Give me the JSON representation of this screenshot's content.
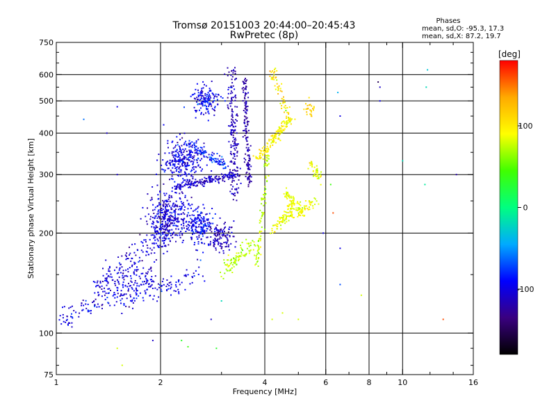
{
  "chart_data": {
    "type": "scatter",
    "title": "Tromsø 20151003 20:44:00–20:45:43",
    "subtitle": "RwPretec (8p)",
    "xlabel": "Frequency [MHz]",
    "ylabel": "Stationary phase Virtual Height [km]",
    "x_scale": "log",
    "y_scale": "log",
    "xlim": [
      1,
      16
    ],
    "ylim": [
      75,
      750
    ],
    "x_ticks": [
      1,
      2,
      4,
      6,
      8,
      10,
      16
    ],
    "x_tick_labels": [
      "1",
      "2",
      "4",
      "6",
      "8",
      "10",
      "16"
    ],
    "y_ticks": [
      75,
      100,
      200,
      300,
      400,
      500,
      600,
      750
    ],
    "y_tick_labels": [
      "75",
      "100",
      "200",
      "300",
      "400",
      "500",
      "600",
      "750"
    ],
    "x_gridlines": [
      2,
      4,
      6,
      8,
      10
    ],
    "y_gridlines": [
      100,
      200,
      300,
      400,
      500,
      600
    ],
    "grid": true,
    "phase_stats": {
      "heading": "Phases",
      "line_o": "mean, sd,O: -95.3, 17.3",
      "line_x": "mean, sd,X:  87.2, 19.7"
    },
    "colorbar": {
      "label": "[deg]",
      "range": [
        -180,
        180
      ],
      "ticks": [
        100,
        0,
        -100
      ],
      "tick_labels": [
        "100",
        "0",
        "-100"
      ],
      "stops": [
        "#000000",
        "#3a0080",
        "#0000ff",
        "#00aaff",
        "#00ff80",
        "#40ff00",
        "#ffff00",
        "#ffaa00",
        "#ff0000"
      ]
    },
    "clusters": [
      {
        "kind": "trace",
        "from": [
          1.0,
          108
        ],
        "to": [
          1.9,
          150
        ],
        "count": 150,
        "spread": 0.04,
        "phase": -105,
        "phase_sd": 12
      },
      {
        "kind": "trace",
        "from": [
          1.3,
          135
        ],
        "to": [
          2.1,
          200
        ],
        "count": 170,
        "spread": 0.05,
        "phase": -105,
        "phase_sd": 12
      },
      {
        "kind": "trace",
        "from": [
          1.5,
          125
        ],
        "to": [
          2.6,
          150
        ],
        "count": 120,
        "spread": 0.04,
        "phase": -100,
        "phase_sd": 12
      },
      {
        "kind": "blob",
        "center": [
          2.1,
          220
        ],
        "sd": [
          0.07,
          0.09
        ],
        "count": 360,
        "phase": -105,
        "phase_sd": 13
      },
      {
        "kind": "blob",
        "center": [
          2.6,
          210
        ],
        "sd": [
          0.05,
          0.07
        ],
        "count": 190,
        "phase": -95,
        "phase_sd": 15
      },
      {
        "kind": "blob",
        "center": [
          2.3,
          330
        ],
        "sd": [
          0.06,
          0.07
        ],
        "count": 260,
        "phase": -100,
        "phase_sd": 13
      },
      {
        "kind": "trace",
        "from": [
          2.2,
          275
        ],
        "to": [
          3.3,
          300
        ],
        "count": 170,
        "spread": 0.015,
        "phase": -110,
        "phase_sd": 10
      },
      {
        "kind": "trace",
        "from": [
          2.4,
          370
        ],
        "to": [
          3.1,
          320
        ],
        "count": 110,
        "spread": 0.02,
        "phase": -85,
        "phase_sd": 18
      },
      {
        "kind": "blob",
        "center": [
          2.7,
          500
        ],
        "sd": [
          0.05,
          0.05
        ],
        "count": 140,
        "phase": -95,
        "phase_sd": 15
      },
      {
        "kind": "trace",
        "from": [
          3.2,
          620
        ],
        "to": [
          3.3,
          250
        ],
        "count": 180,
        "spread": 0.03,
        "phase": -115,
        "phase_sd": 12
      },
      {
        "kind": "trace",
        "from": [
          3.5,
          580
        ],
        "to": [
          3.6,
          280
        ],
        "count": 150,
        "spread": 0.02,
        "phase": -120,
        "phase_sd": 10
      },
      {
        "kind": "blob",
        "center": [
          3.0,
          195
        ],
        "sd": [
          0.04,
          0.05
        ],
        "count": 110,
        "phase": -115,
        "phase_sd": 12
      },
      {
        "kind": "trace",
        "from": [
          3.0,
          155
        ],
        "to": [
          3.7,
          185
        ],
        "count": 90,
        "spread": 0.03,
        "phase": 70,
        "phase_sd": 10
      },
      {
        "kind": "trace",
        "from": [
          3.8,
          160
        ],
        "to": [
          4.1,
          350
        ],
        "count": 90,
        "spread": 0.02,
        "phase": 75,
        "phase_sd": 10
      },
      {
        "kind": "trace",
        "from": [
          3.8,
          330
        ],
        "to": [
          4.7,
          440
        ],
        "count": 140,
        "spread": 0.02,
        "phase": 95,
        "phase_sd": 12
      },
      {
        "kind": "trace",
        "from": [
          4.2,
          620
        ],
        "to": [
          4.8,
          420
        ],
        "count": 60,
        "spread": 0.02,
        "phase": 105,
        "phase_sd": 20
      },
      {
        "kind": "trace",
        "from": [
          4.2,
          200
        ],
        "to": [
          4.9,
          250
        ],
        "count": 80,
        "spread": 0.02,
        "phase": 90,
        "phase_sd": 10
      },
      {
        "kind": "trace",
        "from": [
          4.5,
          270
        ],
        "to": [
          5.2,
          230
        ],
        "count": 60,
        "spread": 0.02,
        "phase": 85,
        "phase_sd": 10
      },
      {
        "kind": "trace",
        "from": [
          4.6,
          220
        ],
        "to": [
          5.6,
          250
        ],
        "count": 60,
        "spread": 0.02,
        "phase": 90,
        "phase_sd": 10
      },
      {
        "kind": "trace",
        "from": [
          5.4,
          320
        ],
        "to": [
          5.8,
          290
        ],
        "count": 40,
        "spread": 0.02,
        "phase": 85,
        "phase_sd": 10
      },
      {
        "kind": "blob",
        "center": [
          5.4,
          470
        ],
        "sd": [
          0.02,
          0.03
        ],
        "count": 25,
        "phase": 110,
        "phase_sd": 10
      }
    ],
    "sparse_points": [
      [
        1.2,
        440,
        -60
      ],
      [
        1.4,
        400,
        -110
      ],
      [
        1.5,
        480,
        -100
      ],
      [
        1.5,
        300,
        -110
      ],
      [
        1.5,
        90,
        80
      ],
      [
        1.55,
        80,
        80
      ],
      [
        1.9,
        95,
        -110
      ],
      [
        2.4,
        91,
        40
      ],
      [
        2.3,
        95,
        30
      ],
      [
        2.9,
        90,
        30
      ],
      [
        3.0,
        125,
        -20
      ],
      [
        2.8,
        110,
        -110
      ],
      [
        4.2,
        110,
        80
      ],
      [
        4.5,
        115,
        80
      ],
      [
        5.0,
        110,
        80
      ],
      [
        5.9,
        200,
        -100
      ],
      [
        6.2,
        280,
        40
      ],
      [
        6.3,
        230,
        160
      ],
      [
        6.5,
        530,
        -40
      ],
      [
        6.6,
        450,
        -100
      ],
      [
        6.6,
        180,
        -100
      ],
      [
        6.6,
        140,
        -70
      ],
      [
        7.6,
        130,
        80
      ],
      [
        8.5,
        570,
        -150
      ],
      [
        8.6,
        500,
        -100
      ],
      [
        8.6,
        550,
        -110
      ],
      [
        10.0,
        330,
        -20
      ],
      [
        11.6,
        280,
        -10
      ],
      [
        11.8,
        620,
        -30
      ],
      [
        11.7,
        550,
        -20
      ],
      [
        13.1,
        110,
        160
      ],
      [
        14.3,
        300,
        -120
      ]
    ]
  }
}
